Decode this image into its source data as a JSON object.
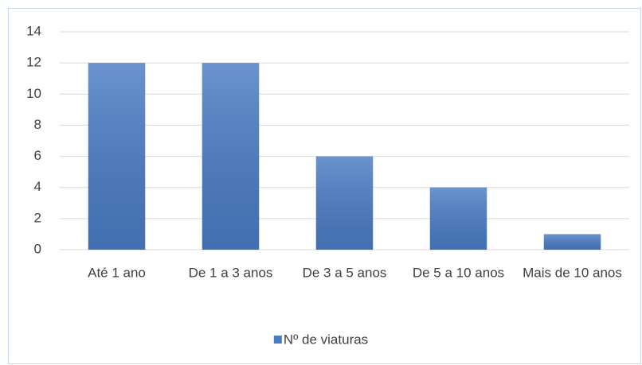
{
  "chart_data": {
    "type": "bar",
    "categories": [
      "Até 1 ano",
      "De 1 a 3 anos",
      "De 3 a 5 anos",
      "De 5 a 10 anos",
      "Mais de 10 anos"
    ],
    "series": [
      {
        "name": "Nº de viaturas",
        "color": "#4a7cc4",
        "values": [
          12,
          12,
          6,
          4,
          1
        ]
      }
    ],
    "ylim": [
      0,
      14
    ],
    "yticks": [
      0,
      2,
      4,
      6,
      8,
      10,
      12,
      14
    ],
    "grid": true,
    "legend": "bottom"
  }
}
